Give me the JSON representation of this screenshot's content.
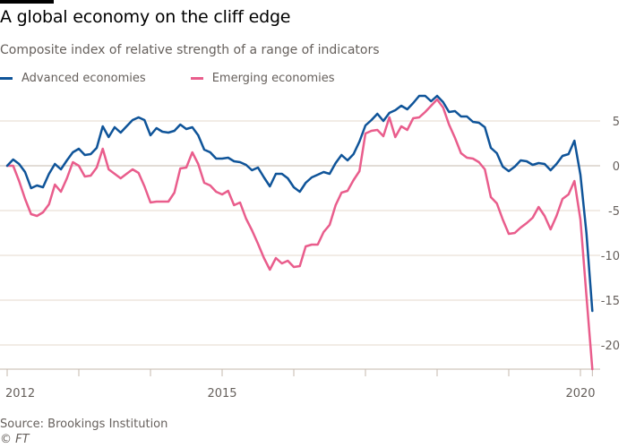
{
  "chart_data": {
    "type": "line",
    "title": "A global economy on the cliff edge",
    "subtitle": "Composite index of relative strength of a range of indicators",
    "xlabel": "",
    "ylabel": "",
    "x_start": "2012-01",
    "x_step": "month",
    "xlim": [
      2012.0,
      2020.33
    ],
    "ylim": [
      -22.7,
      8.5
    ],
    "y_ticks": [
      5,
      0,
      -5,
      -10,
      -15,
      -20
    ],
    "y_tick_labels": [
      "5",
      "0",
      "-5",
      "-10",
      "-15",
      "-20"
    ],
    "x_ticks": [
      2012,
      2013,
      2014,
      2015,
      2016,
      2017,
      2018,
      2019,
      2020
    ],
    "x_tick_labels": [
      "2012",
      "",
      "",
      "2015",
      "",
      "",
      "",
      "",
      "2020"
    ],
    "grid": true,
    "legend_position": "top-left",
    "series": [
      {
        "name": "Advanced economies",
        "color": "#0f5499",
        "values": [
          0.0,
          0.7,
          0.2,
          -0.7,
          -2.5,
          -2.2,
          -2.4,
          -0.9,
          0.2,
          -0.4,
          0.6,
          1.5,
          1.9,
          1.2,
          1.3,
          2.0,
          4.4,
          3.2,
          4.3,
          3.7,
          4.4,
          5.1,
          5.4,
          5.1,
          3.4,
          4.2,
          3.8,
          3.7,
          3.9,
          4.6,
          4.1,
          4.3,
          3.4,
          1.8,
          1.5,
          0.8,
          0.8,
          0.9,
          0.5,
          0.4,
          0.1,
          -0.5,
          -0.2,
          -1.3,
          -2.3,
          -0.9,
          -0.9,
          -1.4,
          -2.4,
          -2.9,
          -1.9,
          -1.3,
          -1.0,
          -0.7,
          -0.9,
          0.3,
          1.2,
          0.6,
          1.3,
          2.7,
          4.5,
          5.1,
          5.8,
          5.0,
          5.9,
          6.2,
          6.7,
          6.3,
          7.0,
          7.8,
          7.8,
          7.2,
          7.8,
          7.1,
          6.0,
          6.1,
          5.5,
          5.5,
          4.9,
          4.8,
          4.3,
          2.0,
          1.4,
          -0.1,
          -0.6,
          -0.1,
          0.6,
          0.5,
          0.1,
          0.3,
          0.2,
          -0.5,
          0.2,
          1.1,
          1.3,
          2.8,
          -1.0,
          -7.5,
          -16.2
        ]
      },
      {
        "name": "Emerging economies",
        "color": "#e95d8c",
        "values": [
          0.0,
          0.0,
          -1.7,
          -3.7,
          -5.4,
          -5.6,
          -5.2,
          -4.3,
          -2.1,
          -2.9,
          -1.4,
          0.4,
          0.0,
          -1.2,
          -1.1,
          -0.2,
          1.9,
          -0.4,
          -0.9,
          -1.4,
          -0.9,
          -0.4,
          -0.8,
          -2.3,
          -4.1,
          -4.0,
          -4.0,
          -4.0,
          -3.0,
          -0.3,
          -0.2,
          1.5,
          0.2,
          -1.9,
          -2.2,
          -2.9,
          -3.2,
          -2.8,
          -4.4,
          -4.1,
          -5.9,
          -7.2,
          -8.7,
          -10.3,
          -11.6,
          -10.3,
          -10.9,
          -10.6,
          -11.3,
          -11.2,
          -9.0,
          -8.8,
          -8.8,
          -7.4,
          -6.6,
          -4.4,
          -3.0,
          -2.8,
          -1.6,
          -0.6,
          3.6,
          3.9,
          4.0,
          3.3,
          5.4,
          3.2,
          4.4,
          4.0,
          5.3,
          5.4,
          6.0,
          6.7,
          7.4,
          6.5,
          4.6,
          3.1,
          1.4,
          0.9,
          0.8,
          0.4,
          -0.4,
          -3.5,
          -4.2,
          -6.0,
          -7.6,
          -7.5,
          -6.9,
          -6.4,
          -5.8,
          -4.6,
          -5.6,
          -7.1,
          -5.6,
          -3.7,
          -3.2,
          -1.7,
          -6.0,
          -14.5,
          -22.7
        ]
      }
    ]
  },
  "header": {
    "title": "A global economy on the cliff edge",
    "subtitle": "Composite index of relative strength of a range of indicators"
  },
  "legend": {
    "items": [
      {
        "label": "Advanced economies",
        "color": "#0f5499"
      },
      {
        "label": "Emerging economies",
        "color": "#e95d8c"
      }
    ]
  },
  "footer": {
    "source": "Source: Brookings Institution",
    "copyright": "© FT"
  },
  "colors": {
    "gridline": "#e6d9ce",
    "zero_line": "#c4b8ae",
    "axis_text": "#66605c"
  }
}
